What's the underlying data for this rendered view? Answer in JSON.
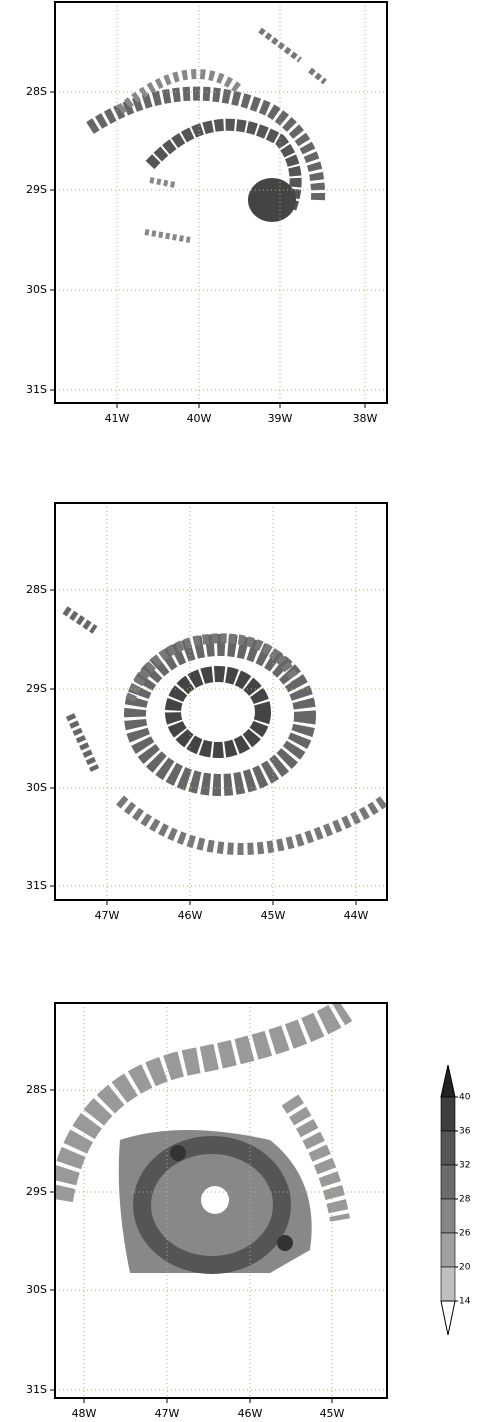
{
  "panels": [
    {
      "yticks": [
        "28S",
        "29S",
        "30S",
        "31S"
      ],
      "xticks": [
        "41W",
        "40W",
        "39W",
        "38W"
      ]
    },
    {
      "yticks": [
        "28S",
        "29S",
        "30S",
        "31S"
      ],
      "xticks": [
        "47W",
        "46W",
        "45W",
        "44W"
      ]
    },
    {
      "yticks": [
        "28S",
        "29S",
        "30S",
        "31S"
      ],
      "xticks": [
        "48W",
        "47W",
        "46W",
        "45W"
      ]
    }
  ],
  "colorbar": {
    "labels": [
      40,
      36,
      32,
      28,
      26,
      20,
      14
    ]
  }
}
